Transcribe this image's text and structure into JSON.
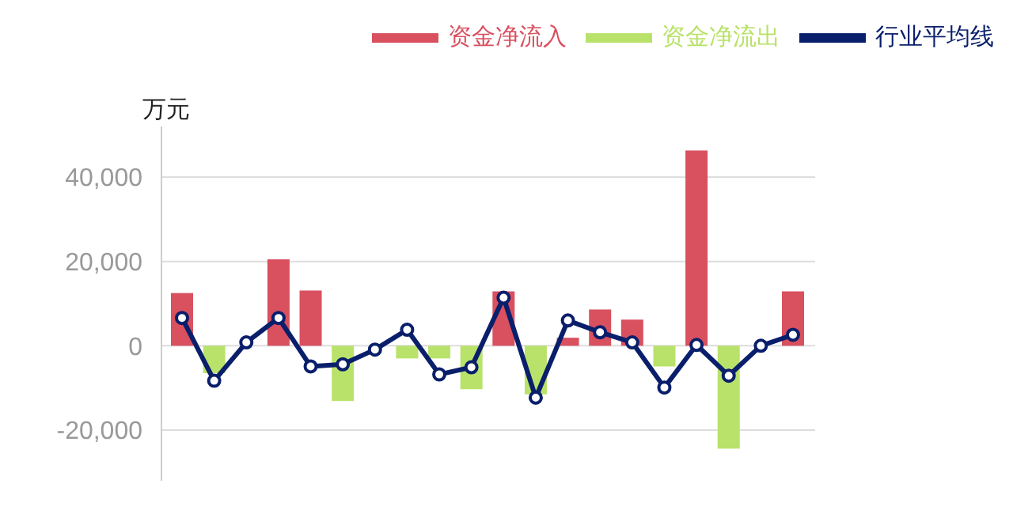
{
  "chart_data": {
    "type": "bar",
    "ylabel": "万元",
    "categories": [
      null,
      null,
      null,
      null,
      null,
      null,
      null,
      null,
      null,
      null,
      null,
      null,
      null,
      null,
      null,
      null,
      null,
      null,
      null,
      null
    ],
    "series": [
      {
        "name": "资金净流入",
        "color": "#d9505f",
        "values": [
          12500,
          null,
          null,
          20500,
          13100,
          null,
          null,
          null,
          null,
          null,
          12900,
          null,
          1900,
          8600,
          6200,
          null,
          46300,
          null,
          null,
          12900
        ]
      },
      {
        "name": "资金净流出",
        "color": "#b9e26a",
        "values": [
          null,
          -6500,
          null,
          null,
          null,
          -13100,
          null,
          -3000,
          -3000,
          -10300,
          null,
          -11500,
          null,
          null,
          null,
          -4900,
          null,
          -24400,
          null,
          null
        ]
      },
      {
        "name": "行业平均线",
        "color": "#0a1f6b",
        "type": "line",
        "values": [
          6600,
          -8300,
          800,
          6600,
          -4900,
          -4400,
          -900,
          3800,
          -6800,
          -5100,
          11400,
          -12300,
          6000,
          3200,
          800,
          -9900,
          200,
          -7100,
          0,
          2600
        ]
      }
    ],
    "ylim": [
      -32000,
      52000
    ],
    "yticks": [
      {
        "value": -20000,
        "label": "-20,000"
      },
      0,
      {
        "value": 20000,
        "label": "20,000"
      },
      {
        "value": 40000,
        "label": "40,000"
      }
    ],
    "grid": "y",
    "legend": "top right",
    "marker": "circle"
  }
}
